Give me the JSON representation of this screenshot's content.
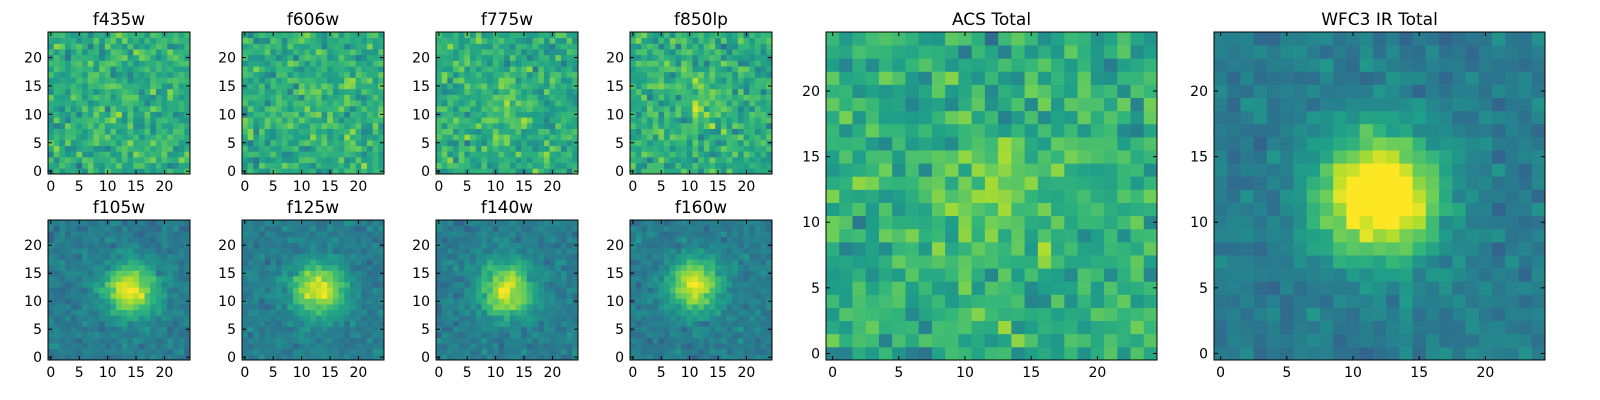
{
  "colormap": "viridis",
  "chart_data": [
    {
      "type": "heatmap",
      "title": "f435w",
      "kind": "noise",
      "seed": 11,
      "center": [
        12,
        12
      ],
      "strength": 0.05,
      "ticks": [
        0,
        5,
        10,
        15,
        20
      ],
      "xlim": [
        -0.5,
        24.5
      ],
      "ylim": [
        -0.5,
        24.5
      ],
      "grid": false
    },
    {
      "type": "heatmap",
      "title": "f606w",
      "kind": "noise",
      "seed": 23,
      "center": [
        13,
        12
      ],
      "strength": 0.18,
      "ticks": [
        0,
        5,
        10,
        15,
        20
      ],
      "xlim": [
        -0.5,
        24.5
      ],
      "ylim": [
        -0.5,
        24.5
      ],
      "grid": false
    },
    {
      "type": "heatmap",
      "title": "f775w",
      "kind": "noise",
      "seed": 37,
      "center": [
        12,
        12
      ],
      "strength": 0.2,
      "ticks": [
        0,
        5,
        10,
        15,
        20
      ],
      "xlim": [
        -0.5,
        24.5
      ],
      "ylim": [
        -0.5,
        24.5
      ],
      "grid": false
    },
    {
      "type": "heatmap",
      "title": "f850lp",
      "kind": "noise",
      "seed": 41,
      "center": [
        12,
        12
      ],
      "strength": 0.2,
      "ticks": [
        0,
        5,
        10,
        15,
        20
      ],
      "xlim": [
        -0.5,
        24.5
      ],
      "ylim": [
        -0.5,
        24.5
      ],
      "grid": false
    },
    {
      "type": "heatmap",
      "title": "f105w",
      "kind": "source",
      "seed": 53,
      "center": [
        14,
        12
      ],
      "strength": 0.55,
      "ticks": [
        0,
        5,
        10,
        15,
        20
      ],
      "xlim": [
        -0.5,
        24.5
      ],
      "ylim": [
        -0.5,
        24.5
      ],
      "grid": false
    },
    {
      "type": "heatmap",
      "title": "f125w",
      "kind": "source",
      "seed": 61,
      "center": [
        13,
        12
      ],
      "strength": 0.55,
      "ticks": [
        0,
        5,
        10,
        15,
        20
      ],
      "xlim": [
        -0.5,
        24.5
      ],
      "ylim": [
        -0.5,
        24.5
      ],
      "grid": false
    },
    {
      "type": "heatmap",
      "title": "f140w",
      "kind": "source",
      "seed": 71,
      "center": [
        12,
        12
      ],
      "strength": 0.55,
      "ticks": [
        0,
        5,
        10,
        15,
        20
      ],
      "xlim": [
        -0.5,
        24.5
      ],
      "ylim": [
        -0.5,
        24.5
      ],
      "grid": false
    },
    {
      "type": "heatmap",
      "title": "f160w",
      "kind": "source",
      "seed": 83,
      "center": [
        11,
        13
      ],
      "strength": 0.55,
      "ticks": [
        0,
        5,
        10,
        15,
        20
      ],
      "xlim": [
        -0.5,
        24.5
      ],
      "ylim": [
        -0.5,
        24.5
      ],
      "grid": false
    },
    {
      "type": "heatmap",
      "title": "ACS Total",
      "kind": "noise",
      "seed": 97,
      "center": [
        12,
        12
      ],
      "strength": 0.3,
      "xticks": [
        0,
        5,
        10,
        15,
        20
      ],
      "yticks": [
        0,
        5,
        10,
        15,
        20
      ],
      "xlim": [
        -0.5,
        24.5
      ],
      "ylim": [
        -0.5,
        24.5
      ],
      "grid": false
    },
    {
      "type": "heatmap",
      "title": "WFC3 IR Total",
      "kind": "source",
      "seed": 101,
      "center": [
        12,
        12
      ],
      "strength": 0.75,
      "xticks": [
        0,
        5,
        10,
        15,
        20
      ],
      "yticks": [
        0,
        5,
        10,
        15,
        20
      ],
      "xlim": [
        -0.5,
        24.5
      ],
      "ylim": [
        -0.5,
        24.5
      ],
      "grid": false
    }
  ]
}
